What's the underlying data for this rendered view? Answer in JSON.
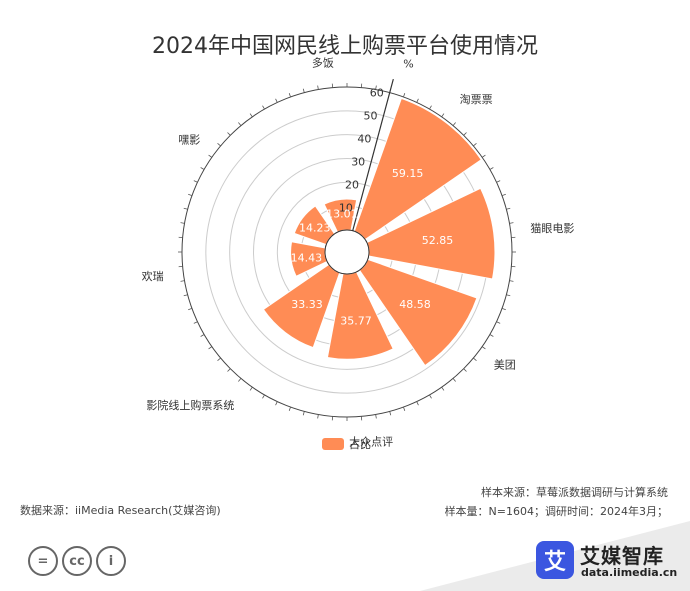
{
  "title": "2024年中国网民线上购票平台使用情况",
  "chart_data": {
    "type": "polar-bar",
    "title": "2024年中国网民线上购票平台使用情况",
    "radial_axis_unit": "%",
    "radial_ticks": [
      10,
      20,
      30,
      40,
      50,
      60
    ],
    "ylim": [
      0,
      60
    ],
    "categories": [
      "淘票票",
      "猫眼电影",
      "美团",
      "大众点评",
      "影院线上购票系统",
      "欢瑞",
      "嘿影",
      "多饭"
    ],
    "series": [
      {
        "name": "占比",
        "values": [
          59.15,
          52.85,
          48.58,
          35.77,
          33.33,
          14.43,
          14.23,
          13.01
        ]
      }
    ],
    "legend": [
      "占比"
    ],
    "colors": {
      "bar": "#ff8c55",
      "axis": "#333333",
      "grid": "#cccccc"
    }
  },
  "footer": {
    "source": "数据来源：iiMedia Research(艾媒咨询)",
    "sample_source": "样本来源：草莓派数据调研与计算系统",
    "sample_info": "样本量：N=1604；调研时间：2024年3月；"
  },
  "license": {
    "icons": [
      "equals-icon",
      "cc-icon",
      "person-icon"
    ],
    "labels": [
      "=",
      "cc",
      "i"
    ]
  },
  "brand": {
    "logo_char": "艾",
    "name": "艾媒智库",
    "url": "data.iimedia.cn"
  }
}
